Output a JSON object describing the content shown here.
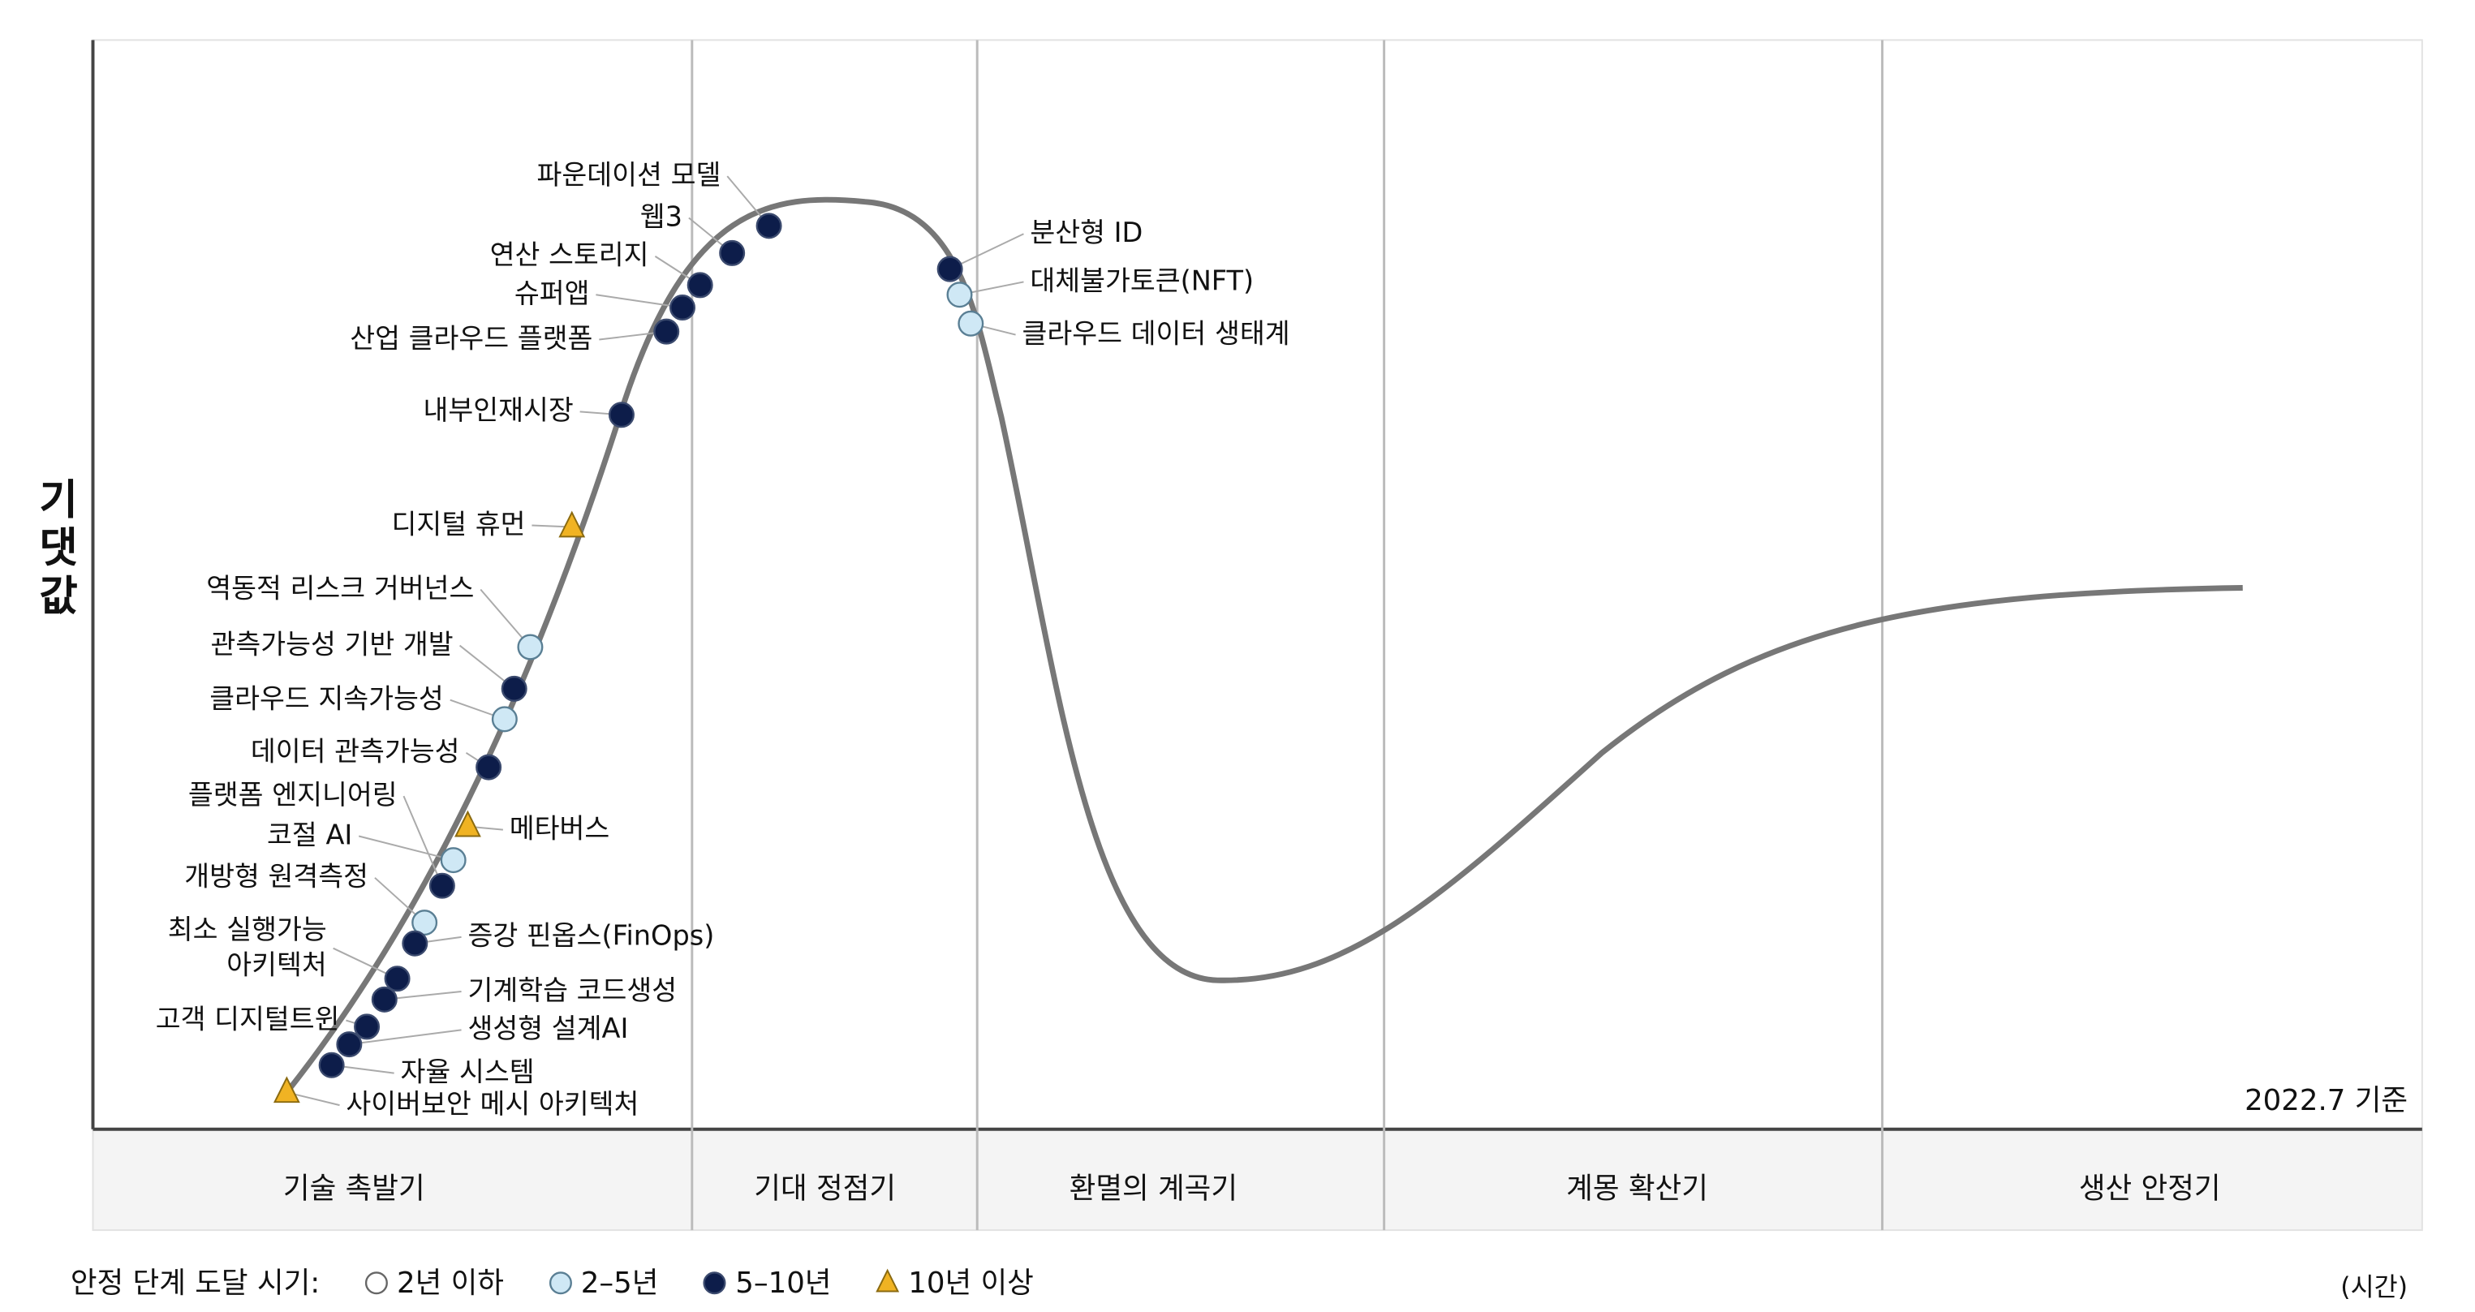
{
  "y_axis_label": "기댓값",
  "x_axis_label": "(시간)",
  "as_of": "2022.7 기준",
  "phases": [
    "기술 촉발기",
    "기대 정점기",
    "환멸의 계곡기",
    "계몽 확산기",
    "생산 안정기"
  ],
  "legend": {
    "title": "안정 단계 도달 시기:",
    "groups": [
      {
        "label": "2년 이하",
        "technologies": []
      },
      {
        "label": "2–5년",
        "technologies": [
          "역동적 리스크 거버넌스",
          "클라우드 지속가능성",
          "코절 AI",
          "개방형 원격측정",
          "대체불가토큰(NFT)",
          "클라우드 데이터 생태계"
        ]
      },
      {
        "label": "5–10년",
        "technologies": [
          "파운데이션 모델",
          "웹3",
          "연산 스토리지",
          "슈퍼앱",
          "산업 클라우드 플랫폼",
          "내부인재시장",
          "관측가능성 기반 개발",
          "데이터 관측가능성",
          "플랫폼 엔지니어링",
          "증강 핀옵스(FinOps)",
          "최소 실행가능\n아키텍처",
          "기계학습 코드생성",
          "고객 디지털트윈",
          "생성형 설계AI",
          "자율 시스템",
          "분산형 ID"
        ]
      },
      {
        "label": "10년 이상",
        "technologies": [
          "디지털 휴먼",
          "메타버스",
          "사이버보안 메시 아키텍처"
        ]
      }
    ]
  }
}
